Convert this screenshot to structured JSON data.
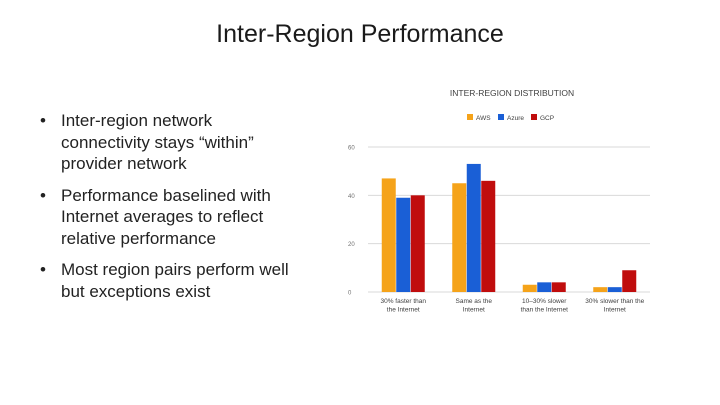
{
  "slide": {
    "title": "Inter-Region Performance",
    "bullets": [
      "Inter-region network connectivity stays “within” provider network",
      "Performance baselined with Internet averages to reflect relative performance",
      "Most region pairs perform well but exceptions exist"
    ]
  },
  "chart_data": {
    "type": "bar",
    "title": "INTER-REGION DISTRIBUTION",
    "xlabel": "",
    "ylabel": "",
    "categories": [
      [
        "30% faster than",
        "the Internet"
      ],
      [
        "Same as the",
        "Internet"
      ],
      [
        "10–30% slower",
        "than the Internet"
      ],
      [
        "30% slower than the",
        "Internet"
      ]
    ],
    "series": [
      {
        "name": "AWS",
        "color": "#F5A31A",
        "values": [
          47,
          45,
          3,
          2
        ]
      },
      {
        "name": "Azure",
        "color": "#1A5FD6",
        "values": [
          39,
          53,
          4,
          2
        ]
      },
      {
        "name": "GCP",
        "color": "#C00D0D",
        "values": [
          40,
          46,
          4,
          9
        ]
      }
    ],
    "ylim": [
      0,
      60
    ],
    "yticks": [
      0,
      20,
      40,
      60
    ],
    "ytick_labels": [
      "0",
      "20",
      "40",
      "60"
    ],
    "grid": true,
    "legend_position": "top"
  }
}
